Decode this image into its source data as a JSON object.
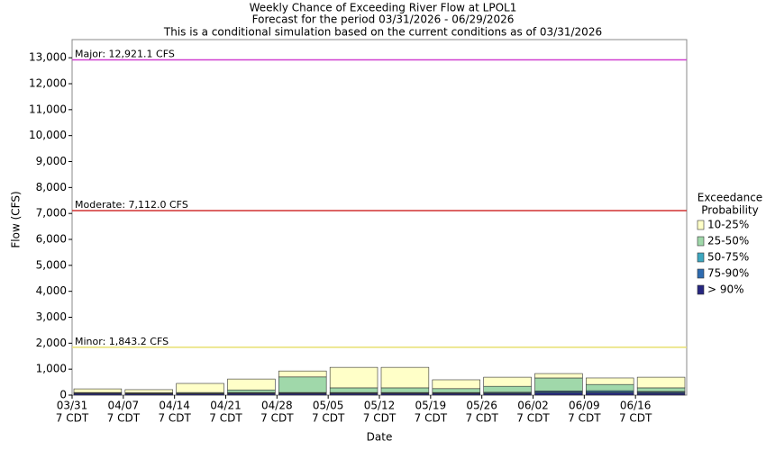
{
  "chart_data": {
    "type": "stacked_bar",
    "title": [
      "Weekly Chance of Exceeding River Flow at LPOL1",
      "Forecast for the period 03/31/2026 - 06/29/2026",
      "This is a conditional simulation based on the current conditions as of 03/31/2026"
    ],
    "x_label": "Date",
    "y_label": "Flow (CFS)",
    "categories": [
      [
        "03/31",
        "7 CDT"
      ],
      [
        "04/07",
        "7 CDT"
      ],
      [
        "04/14",
        "7 CDT"
      ],
      [
        "04/21",
        "7 CDT"
      ],
      [
        "04/28",
        "7 CDT"
      ],
      [
        "05/05",
        "7 CDT"
      ],
      [
        "05/12",
        "7 CDT"
      ],
      [
        "05/19",
        "7 CDT"
      ],
      [
        "05/26",
        "7 CDT"
      ],
      [
        "06/02",
        "7 CDT"
      ],
      [
        "06/09",
        "7 CDT"
      ],
      [
        "06/16",
        "7 CDT"
      ]
    ],
    "series": [
      {
        "name": "> 90%",
        "color": "#262680",
        "values": [
          60,
          50,
          50,
          60,
          60,
          60,
          60,
          60,
          60,
          80,
          80,
          70
        ]
      },
      {
        "name": "75-90%",
        "color": "#2e6bb0",
        "values": [
          10,
          10,
          10,
          20,
          20,
          20,
          20,
          20,
          20,
          50,
          50,
          40
        ]
      },
      {
        "name": "50-75%",
        "color": "#3ea8c0",
        "values": [
          10,
          10,
          10,
          20,
          20,
          20,
          20,
          20,
          30,
          30,
          40,
          30
        ]
      },
      {
        "name": "25-50%",
        "color": "#a0d8aa",
        "values": [
          20,
          20,
          30,
          100,
          600,
          180,
          180,
          150,
          230,
          500,
          240,
          140
        ]
      },
      {
        "name": "10-25%",
        "color": "#ffffc8",
        "values": [
          140,
          120,
          350,
          420,
          230,
          790,
          790,
          340,
          350,
          170,
          250,
          410
        ]
      }
    ],
    "legend_title": [
      "Exceedance",
      "Probability"
    ],
    "thresholds": [
      {
        "label": "Major: 12,921.1 CFS",
        "value": 12921.1,
        "color": "#d040d0"
      },
      {
        "label": "Moderate: 7,112.0 CFS",
        "value": 7112.0,
        "color": "#d03030"
      },
      {
        "label": "Minor: 1,843.2 CFS",
        "value": 1843.2,
        "color": "#e8e070"
      }
    ],
    "ylim": [
      0,
      13700
    ],
    "yticks": [
      0,
      {
        "value": 1000,
        "label": "1,000"
      },
      {
        "value": 2000,
        "label": "2,000"
      },
      {
        "value": 3000,
        "label": "3,000"
      },
      {
        "value": 4000,
        "label": "4,000"
      },
      {
        "value": 5000,
        "label": "5,000"
      },
      {
        "value": 6000,
        "label": "6,000"
      },
      {
        "value": 7000,
        "label": "7,000"
      },
      {
        "value": 8000,
        "label": "8,000"
      },
      {
        "value": 9000,
        "label": "9,000"
      },
      {
        "value": 10000,
        "label": "10,000"
      },
      {
        "value": 11000,
        "label": "11,000"
      },
      {
        "value": 12000,
        "label": "12,000"
      },
      {
        "value": 13000,
        "label": "13,000"
      }
    ]
  }
}
